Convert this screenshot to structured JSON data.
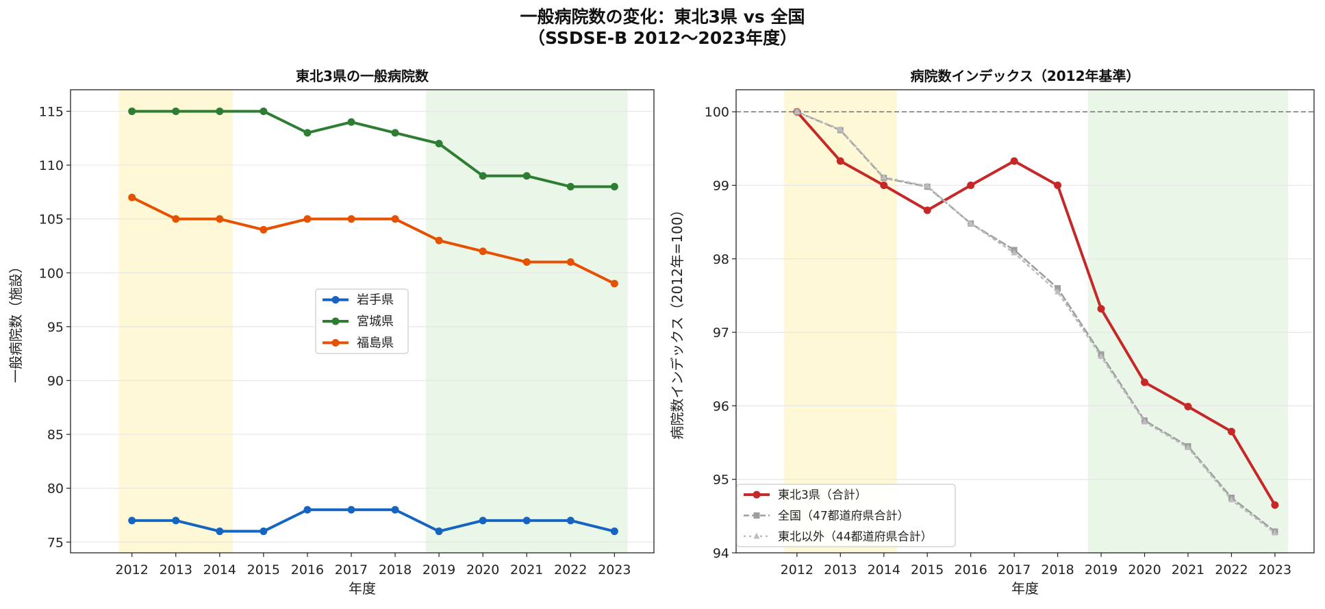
{
  "figure": {
    "title_line1": "一般病院数の変化：東北3県 vs 全国",
    "title_line2": "（SSDSE-B 2012〜2023年度）"
  },
  "chart_data": [
    {
      "type": "line",
      "title": "東北3県の一般病院数",
      "xlabel": "年度",
      "ylabel": "一般病院数（施設）",
      "x": [
        2012,
        2013,
        2014,
        2015,
        2016,
        2017,
        2018,
        2019,
        2020,
        2021,
        2022,
        2023
      ],
      "xlim": [
        2010.6,
        2023.9
      ],
      "ylim": [
        74,
        117
      ],
      "yticks": [
        75,
        80,
        85,
        90,
        95,
        100,
        105,
        110,
        115
      ],
      "grid": "y",
      "legend": "center",
      "shaded_periods": [
        {
          "from": 2011.7,
          "to": 2014.3,
          "color": "#fff8d6"
        },
        {
          "from": 2018.7,
          "to": 2023.3,
          "color": "#eaf6e8"
        }
      ],
      "series": [
        {
          "name": "岩手県",
          "color": "#1565c0",
          "marker": "circle",
          "dash": "solid",
          "values": [
            77,
            77,
            76,
            76,
            78,
            78,
            78,
            76,
            77,
            77,
            77,
            76
          ]
        },
        {
          "name": "宮城県",
          "color": "#2e7d32",
          "marker": "circle",
          "dash": "solid",
          "values": [
            115,
            115,
            115,
            115,
            113,
            114,
            113,
            112,
            109,
            109,
            108,
            108
          ]
        },
        {
          "name": "福島県",
          "color": "#e65100",
          "marker": "circle",
          "dash": "solid",
          "values": [
            107,
            105,
            105,
            104,
            105,
            105,
            105,
            103,
            102,
            101,
            101,
            99
          ]
        }
      ]
    },
    {
      "type": "line",
      "title": "病院数インデックス（2012年基準）",
      "xlabel": "年度",
      "ylabel": "病院数インデックス（2012年=100）",
      "x": [
        2012,
        2013,
        2014,
        2015,
        2016,
        2017,
        2018,
        2019,
        2020,
        2021,
        2022,
        2023
      ],
      "xlim": [
        2010.6,
        2023.9
      ],
      "ylim": [
        94,
        100.3
      ],
      "yticks": [
        94,
        95,
        96,
        97,
        98,
        99,
        100
      ],
      "grid": "y",
      "legend": "lower-left",
      "reference_line": {
        "y": 100,
        "color": "#666666",
        "dash": "dashed"
      },
      "shaded_periods": [
        {
          "from": 2011.7,
          "to": 2014.3,
          "color": "#fff8d6"
        },
        {
          "from": 2018.7,
          "to": 2023.3,
          "color": "#eaf6e8"
        }
      ],
      "series": [
        {
          "name": "東北3県（合計）",
          "color": "#c62828",
          "marker": "circle",
          "dash": "solid",
          "values": [
            100,
            99.33,
            99.0,
            98.66,
            99.0,
            99.33,
            99.0,
            97.32,
            96.32,
            95.99,
            95.65,
            94.65
          ]
        },
        {
          "name": "全国（47都道府県合計）",
          "color": "#9e9e9e",
          "marker": "square",
          "dash": "dashed",
          "values": [
            100,
            99.75,
            99.1,
            98.98,
            98.48,
            98.12,
            97.6,
            96.7,
            95.8,
            95.45,
            94.75,
            94.29
          ]
        },
        {
          "name": "東北以外（44都道府県合計）",
          "color": "#bdbdbd",
          "marker": "triangle",
          "dash": "dotted",
          "values": [
            100,
            99.76,
            99.11,
            98.99,
            98.48,
            98.08,
            97.55,
            96.67,
            95.78,
            95.43,
            94.72,
            94.27
          ]
        }
      ]
    }
  ]
}
